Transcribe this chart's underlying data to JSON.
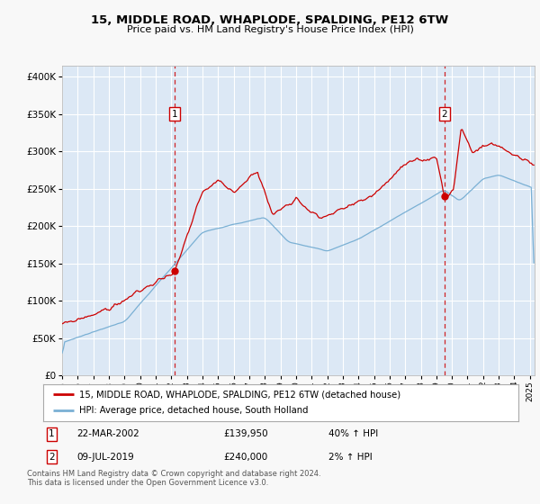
{
  "title": "15, MIDDLE ROAD, WHAPLODE, SPALDING, PE12 6TW",
  "subtitle": "Price paid vs. HM Land Registry's House Price Index (HPI)",
  "ylabel_values": [
    0,
    50000,
    100000,
    150000,
    200000,
    250000,
    300000,
    350000,
    400000
  ],
  "ylim": [
    0,
    415000
  ],
  "xlim_start": 1995.0,
  "xlim_end": 2025.3,
  "plot_bg_color": "#dce8f5",
  "fig_bg_color": "#f8f8f8",
  "grid_color": "#ffffff",
  "marker1_x": 2002.22,
  "marker1_y": 139950,
  "marker2_x": 2019.52,
  "marker2_y": 240000,
  "marker1_label": "1",
  "marker2_label": "2",
  "marker1_date": "22-MAR-2002",
  "marker1_price": "£139,950",
  "marker1_hpi": "40% ↑ HPI",
  "marker2_date": "09-JUL-2019",
  "marker2_price": "£240,000",
  "marker2_hpi": "2% ↑ HPI",
  "legend_line1": "15, MIDDLE ROAD, WHAPLODE, SPALDING, PE12 6TW (detached house)",
  "legend_line2": "HPI: Average price, detached house, South Holland",
  "footer": "Contains HM Land Registry data © Crown copyright and database right 2024.\nThis data is licensed under the Open Government Licence v3.0.",
  "line1_color": "#cc0000",
  "line2_color": "#7ab0d4",
  "marker_box_color": "#cc0000",
  "marker_dot_color": "#cc0000"
}
